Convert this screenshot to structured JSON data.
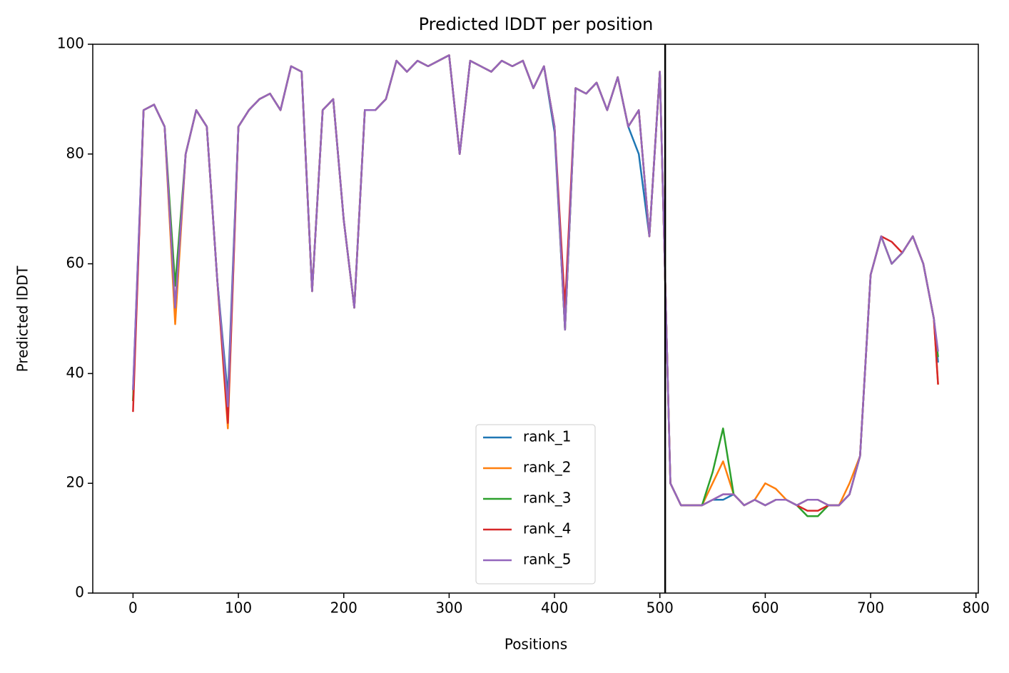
{
  "chart_data": {
    "type": "line",
    "title": "Predicted lDDT per position",
    "xlabel": "Positions",
    "ylabel": "Predicted lDDT",
    "x": [
      0,
      10,
      20,
      30,
      40,
      50,
      60,
      70,
      80,
      90,
      100,
      110,
      120,
      130,
      140,
      150,
      160,
      170,
      180,
      190,
      200,
      210,
      220,
      230,
      240,
      250,
      260,
      270,
      280,
      290,
      300,
      310,
      320,
      330,
      340,
      350,
      360,
      370,
      380,
      390,
      400,
      410,
      420,
      430,
      440,
      450,
      460,
      470,
      480,
      490,
      500,
      510,
      520,
      530,
      540,
      550,
      560,
      570,
      580,
      590,
      600,
      610,
      620,
      630,
      640,
      650,
      660,
      670,
      680,
      690,
      700,
      710,
      720,
      730,
      740,
      750,
      760,
      764
    ],
    "series": [
      {
        "name": "rank_1",
        "color": "#1f77b4",
        "values": [
          37,
          88,
          89,
          85,
          52,
          80,
          88,
          85,
          57,
          36,
          85,
          88,
          90,
          91,
          88,
          96,
          95,
          55,
          88,
          90,
          68,
          52,
          88,
          88,
          90,
          97,
          95,
          97,
          96,
          97,
          98,
          80,
          97,
          96,
          95,
          97,
          96,
          97,
          92,
          96,
          84,
          48,
          92,
          91,
          93,
          88,
          94,
          85,
          80,
          65,
          95,
          20,
          16,
          16,
          16,
          17,
          17,
          18,
          16,
          17,
          16,
          17,
          17,
          16,
          17,
          17,
          16,
          16,
          18,
          25,
          58,
          65,
          60,
          62,
          65,
          60,
          50,
          42
        ]
      },
      {
        "name": "rank_2",
        "color": "#ff7f0e",
        "values": [
          35,
          88,
          89,
          85,
          49,
          80,
          88,
          85,
          57,
          30,
          85,
          88,
          90,
          91,
          88,
          96,
          95,
          55,
          88,
          90,
          68,
          52,
          88,
          88,
          90,
          97,
          95,
          97,
          96,
          97,
          98,
          80,
          97,
          96,
          95,
          97,
          96,
          97,
          92,
          96,
          85,
          48,
          92,
          91,
          93,
          88,
          94,
          85,
          88,
          65,
          95,
          20,
          16,
          16,
          16,
          20,
          24,
          18,
          16,
          17,
          20,
          19,
          17,
          16,
          17,
          17,
          16,
          16,
          20,
          25,
          58,
          65,
          60,
          62,
          65,
          60,
          50,
          38
        ]
      },
      {
        "name": "rank_3",
        "color": "#2ca02c",
        "values": [
          35,
          88,
          89,
          85,
          56,
          80,
          88,
          85,
          57,
          34,
          85,
          88,
          90,
          91,
          88,
          96,
          95,
          55,
          88,
          90,
          68,
          52,
          88,
          88,
          90,
          97,
          95,
          97,
          96,
          97,
          98,
          80,
          97,
          96,
          95,
          97,
          96,
          97,
          92,
          96,
          85,
          48,
          92,
          91,
          93,
          88,
          94,
          85,
          88,
          65,
          95,
          20,
          16,
          16,
          16,
          22,
          30,
          18,
          16,
          17,
          16,
          17,
          17,
          16,
          14,
          14,
          16,
          16,
          18,
          25,
          58,
          65,
          60,
          62,
          65,
          60,
          50,
          43
        ]
      },
      {
        "name": "rank_4",
        "color": "#d62728",
        "values": [
          33,
          88,
          89,
          85,
          52,
          80,
          88,
          85,
          57,
          31,
          85,
          88,
          90,
          91,
          88,
          96,
          95,
          55,
          88,
          90,
          68,
          52,
          88,
          88,
          90,
          97,
          95,
          97,
          96,
          97,
          98,
          80,
          97,
          96,
          95,
          97,
          96,
          97,
          92,
          96,
          85,
          52,
          92,
          91,
          93,
          88,
          94,
          85,
          88,
          65,
          95,
          20,
          16,
          16,
          16,
          17,
          18,
          18,
          16,
          17,
          16,
          17,
          17,
          16,
          15,
          15,
          16,
          16,
          18,
          25,
          58,
          65,
          64,
          62,
          65,
          60,
          50,
          38
        ]
      },
      {
        "name": "rank_5",
        "color": "#9467bd",
        "values": [
          37,
          88,
          89,
          85,
          52,
          80,
          88,
          85,
          57,
          34,
          85,
          88,
          90,
          91,
          88,
          96,
          95,
          55,
          88,
          90,
          68,
          52,
          88,
          88,
          90,
          97,
          95,
          97,
          96,
          97,
          98,
          80,
          97,
          96,
          95,
          97,
          96,
          97,
          92,
          96,
          85,
          48,
          92,
          91,
          93,
          88,
          94,
          85,
          88,
          65,
          95,
          20,
          16,
          16,
          16,
          17,
          18,
          18,
          16,
          17,
          16,
          17,
          17,
          16,
          17,
          17,
          16,
          16,
          18,
          25,
          58,
          65,
          60,
          62,
          65,
          60,
          50,
          44
        ]
      }
    ],
    "vlines": [
      505
    ],
    "vline_color": "#000000",
    "xlim": [
      -38.2,
      802.2
    ],
    "xticks": [
      0,
      100,
      200,
      300,
      400,
      500,
      600,
      700,
      800
    ],
    "ylim": [
      0,
      100
    ],
    "yticks": [
      0,
      20,
      40,
      60,
      80,
      100
    ],
    "legend": "lower center"
  }
}
